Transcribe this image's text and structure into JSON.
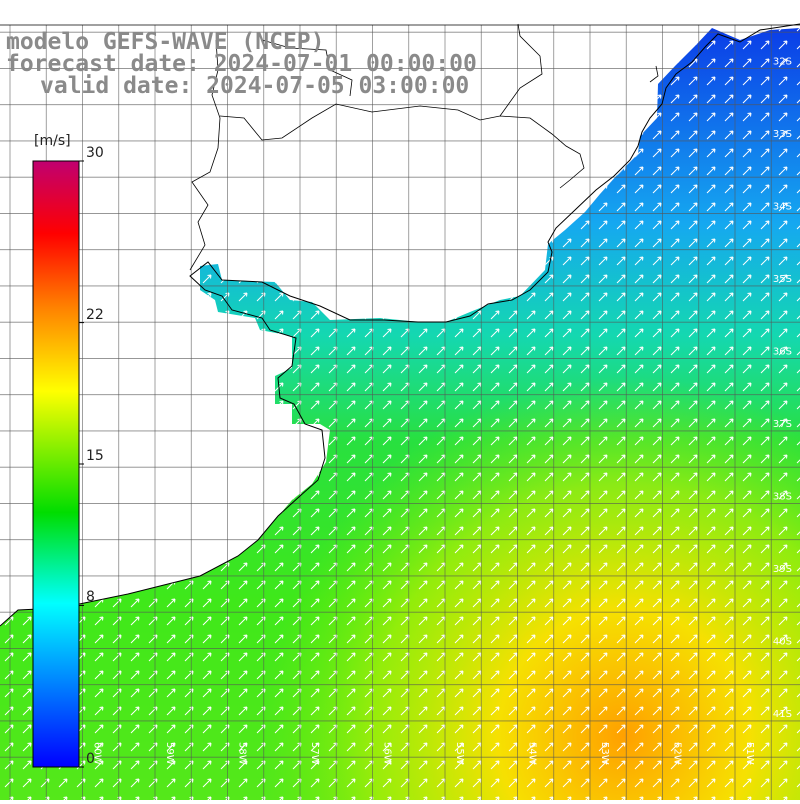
{
  "title": {
    "line1": "modelo GEFS-WAVE (NCEP)",
    "line2": "forecast date: 2024-07-01 00:00:00",
    "line3": "valid date: 2024-07-05 03:00:00"
  },
  "colorbar": {
    "unit": "[m/s]",
    "min": 0,
    "max": 30,
    "tick_labels": [
      "30",
      "22",
      "15",
      "8",
      "0"
    ],
    "tick_values": [
      30,
      22,
      15,
      8,
      0
    ],
    "colors": [
      "#0000ff",
      "#00ffff",
      "#00dd00",
      "#ffff00",
      "#ff8000",
      "#ff0000",
      "#c00070"
    ]
  },
  "map": {
    "lat_labels": [
      "32S",
      "33S",
      "34S",
      "35S",
      "36S",
      "37S",
      "38S",
      "39S",
      "40S",
      "41S"
    ],
    "lon_labels": [
      "60W",
      "59W",
      "58W",
      "57W",
      "56W",
      "55W",
      "54W",
      "53W",
      "52W",
      "51W"
    ],
    "lat_range": [
      -41.5,
      -31.5
    ],
    "lon_range": [
      -61,
      -50
    ],
    "grid": true,
    "land_color": "#ffffff",
    "coast_color": "#000000"
  }
}
